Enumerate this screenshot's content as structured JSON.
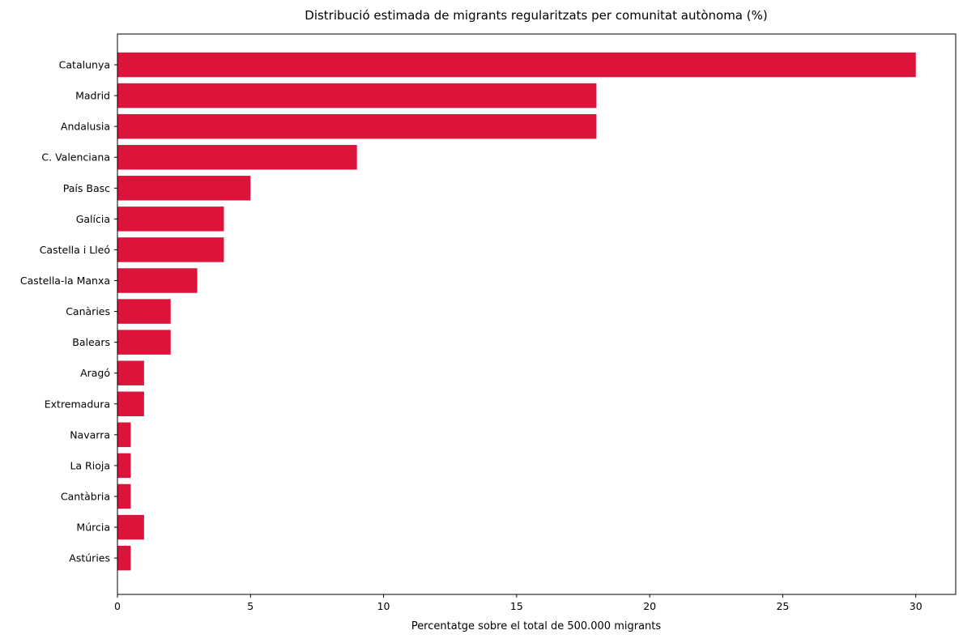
{
  "chart_data": {
    "type": "bar",
    "orientation": "horizontal",
    "title": "Distribució estimada de migrants regularitzats per comunitat autònoma (%)",
    "xlabel": "Percentatge sobre el total de 500.000 migrants",
    "ylabel": "",
    "categories": [
      "Catalunya",
      "Madrid",
      "Andalusia",
      "C. Valenciana",
      "País Basc",
      "Galícia",
      "Castella i Lleó",
      "Castella-la Manxa",
      "Canàries",
      "Balears",
      "Aragó",
      "Extremadura",
      "Navarra",
      "La Rioja",
      "Cantàbria",
      "Múrcia",
      "Astúries"
    ],
    "values": [
      30,
      18,
      18,
      9,
      5,
      4,
      4,
      3,
      2,
      2,
      1,
      1,
      0.5,
      0.5,
      0.5,
      1,
      0.5
    ],
    "xlim": [
      0,
      31.5
    ],
    "xticks": [
      0,
      5,
      10,
      15,
      20,
      25,
      30
    ],
    "grid": false,
    "bar_color": "#dc143c"
  }
}
